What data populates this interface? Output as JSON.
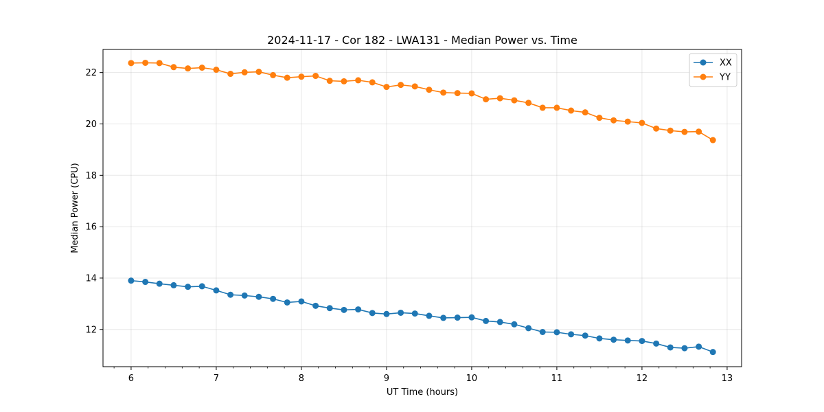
{
  "chart_data": {
    "type": "line",
    "title": "2024-11-17 - Cor 182 - LWA131 - Median Power vs. Time",
    "xlabel": "UT Time (hours)",
    "ylabel": "Median Power (CPU)",
    "xlim": [
      5.67,
      13.17
    ],
    "ylim": [
      10.55,
      22.9
    ],
    "xticks": [
      6,
      7,
      8,
      9,
      10,
      11,
      12,
      13
    ],
    "xtick_labels": [
      "6",
      "7",
      "8",
      "9",
      "10",
      "11",
      "12",
      "13"
    ],
    "yticks": [
      12,
      14,
      16,
      18,
      20,
      22
    ],
    "ytick_labels": [
      "12",
      "14",
      "16",
      "18",
      "20",
      "22"
    ],
    "grid": true,
    "legend_position": "top-right",
    "x": [
      6.0,
      6.167,
      6.333,
      6.5,
      6.667,
      6.833,
      7.0,
      7.167,
      7.333,
      7.5,
      7.667,
      7.833,
      8.0,
      8.167,
      8.333,
      8.5,
      8.667,
      8.833,
      9.0,
      9.167,
      9.333,
      9.5,
      9.667,
      9.833,
      10.0,
      10.167,
      10.333,
      10.5,
      10.667,
      10.833,
      11.0,
      11.167,
      11.333,
      11.5,
      11.667,
      11.833,
      12.0,
      12.167,
      12.333,
      12.5,
      12.667,
      12.833
    ],
    "series": [
      {
        "name": "XX",
        "color": "#1f77b4",
        "values": [
          13.9,
          13.85,
          13.78,
          13.72,
          13.66,
          13.68,
          13.52,
          13.35,
          13.32,
          13.27,
          13.19,
          13.05,
          13.09,
          12.92,
          12.83,
          12.76,
          12.78,
          12.64,
          12.6,
          12.65,
          12.62,
          12.53,
          12.45,
          12.46,
          12.47,
          12.33,
          12.29,
          12.2,
          12.05,
          11.9,
          11.89,
          11.81,
          11.76,
          11.65,
          11.6,
          11.57,
          11.55,
          11.45,
          11.3,
          11.27,
          11.33,
          11.12
        ]
      },
      {
        "name": "YY",
        "color": "#ff7f0e",
        "values": [
          22.37,
          22.38,
          22.37,
          22.21,
          22.16,
          22.19,
          22.11,
          21.95,
          22.01,
          22.03,
          21.9,
          21.8,
          21.84,
          21.87,
          21.68,
          21.66,
          21.7,
          21.62,
          21.44,
          21.52,
          21.46,
          21.33,
          21.22,
          21.2,
          21.19,
          20.96,
          21.0,
          20.92,
          20.82,
          20.63,
          20.63,
          20.52,
          20.45,
          20.24,
          20.14,
          20.09,
          20.04,
          19.82,
          19.74,
          19.69,
          19.7,
          19.37
        ]
      }
    ]
  }
}
